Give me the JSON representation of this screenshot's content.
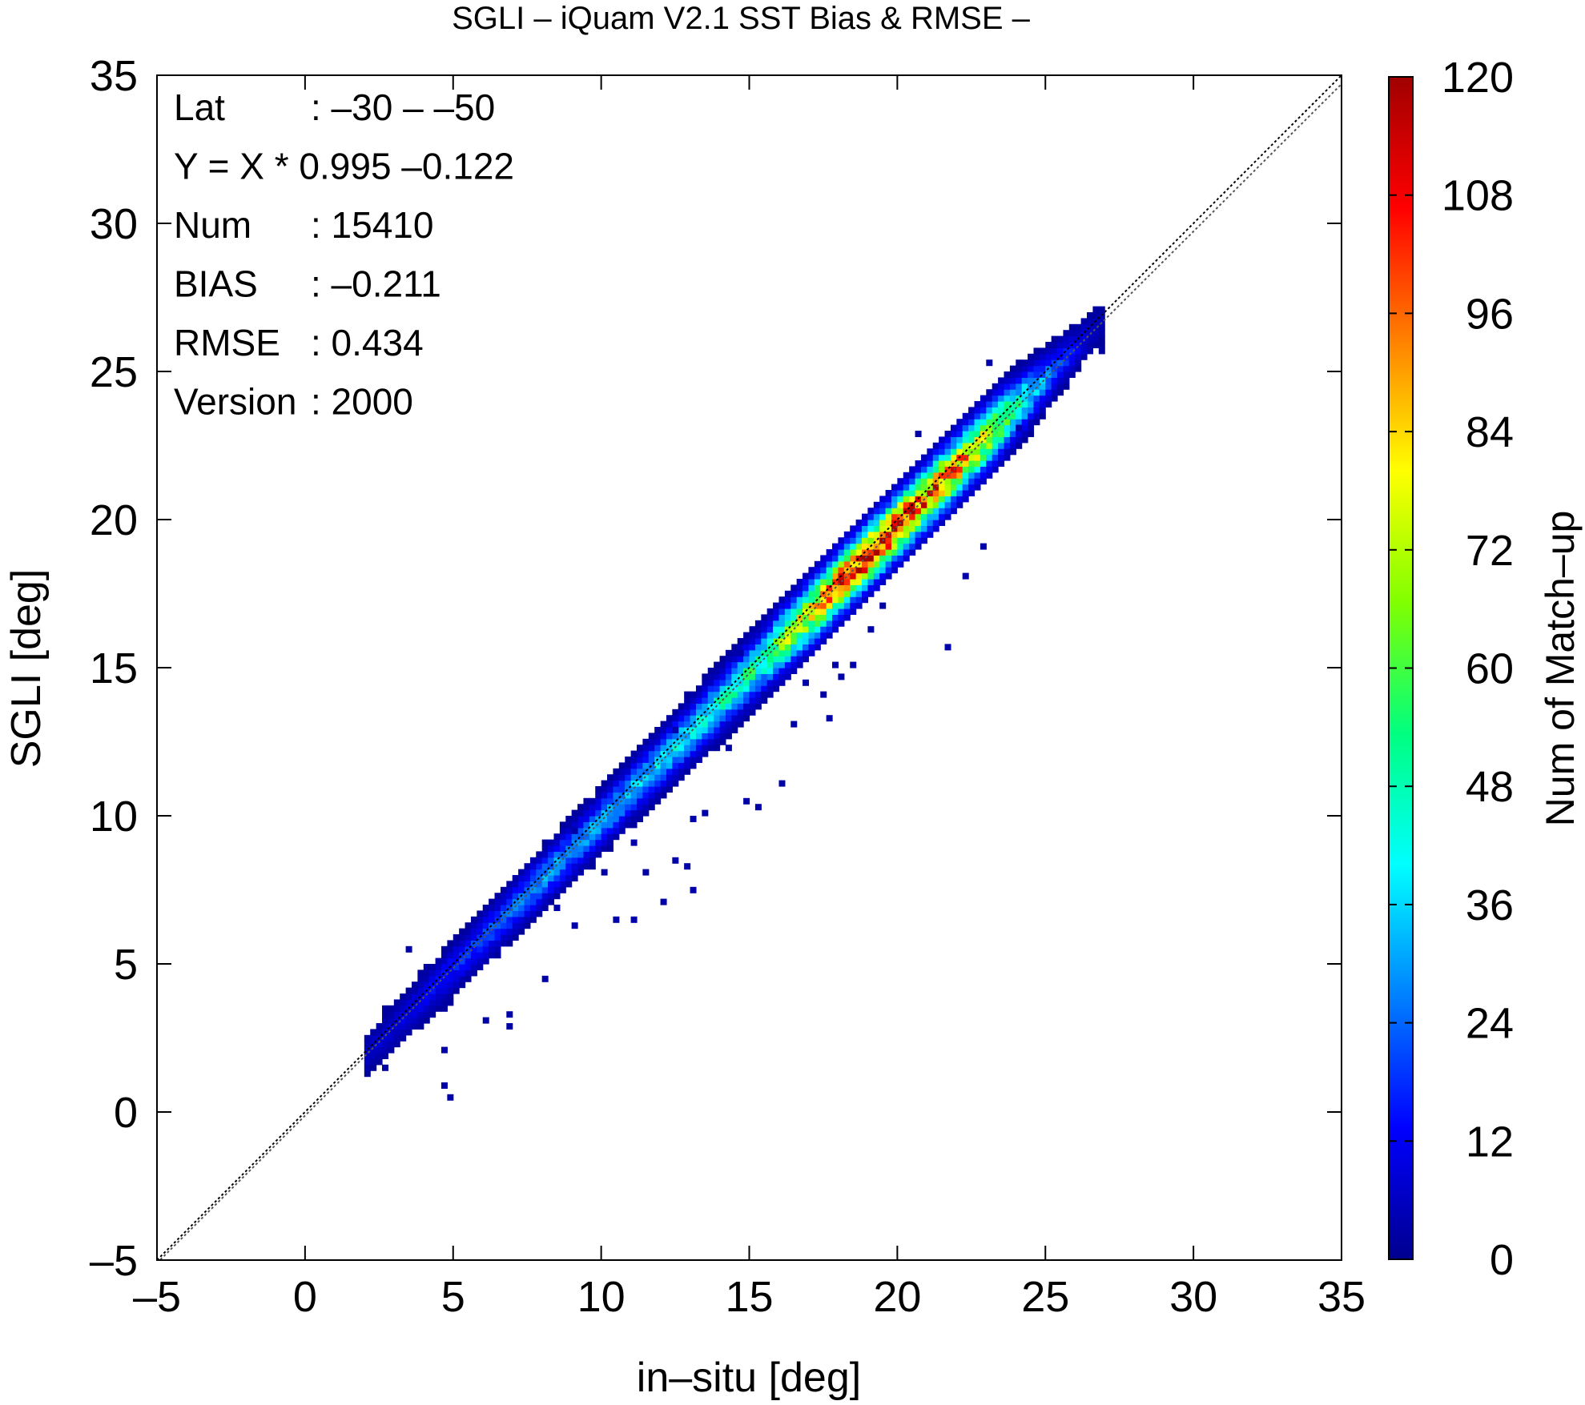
{
  "chart_data": {
    "type": "heatmap",
    "title": "SGLI – iQuam V2.1 SST Bias & RMSE  –",
    "xlabel": "in–situ [deg]",
    "ylabel": "SGLI [deg]",
    "xlim": [
      -5,
      35
    ],
    "ylim": [
      -5,
      35
    ],
    "xticks": [
      -5,
      0,
      5,
      10,
      15,
      20,
      25,
      30,
      35
    ],
    "yticks": [
      -5,
      0,
      5,
      10,
      15,
      20,
      25,
      30,
      35
    ],
    "xtick_labels": [
      "–5",
      "0",
      "5",
      "10",
      "15",
      "20",
      "25",
      "30",
      "35"
    ],
    "ytick_labels": [
      "–5",
      "0",
      "5",
      "10",
      "15",
      "20",
      "25",
      "30",
      "35"
    ],
    "grid": false,
    "stats": [
      {
        "key": "Lat",
        "value": ": –30 – –50"
      },
      {
        "key": "Y = X * 0.995 –0.122",
        "value": ""
      },
      {
        "key": "Num",
        "value": ": 15410"
      },
      {
        "key": "BIAS",
        "value": ": –0.211"
      },
      {
        "key": "RMSE",
        "value": ": 0.434"
      },
      {
        "key": "Version",
        "value": ": 2000"
      }
    ],
    "regression": {
      "slope": 0.995,
      "intercept": -0.122
    },
    "reference_line": {
      "slope": 1,
      "intercept": 0
    },
    "colorbar": {
      "label": "Num of Match–up",
      "min": 0,
      "max": 120,
      "ticks": [
        0,
        12,
        24,
        36,
        48,
        60,
        72,
        84,
        96,
        108,
        120
      ],
      "tick_labels": [
        "0",
        "12",
        "24",
        "36",
        "48",
        "60",
        "72",
        "84",
        "96",
        "108",
        "120"
      ],
      "colors": [
        "#00008f",
        "#0000ff",
        "#0080ff",
        "#00ffff",
        "#00ff80",
        "#80ff00",
        "#ffff00",
        "#ff8000",
        "#ff0000",
        "#a00000"
      ]
    },
    "density_profile": [
      {
        "x": 2,
        "peak": 6
      },
      {
        "x": 3.5,
        "peak": 10
      },
      {
        "x": 5,
        "peak": 16
      },
      {
        "x": 6.5,
        "peak": 22
      },
      {
        "x": 8,
        "peak": 28
      },
      {
        "x": 9.5,
        "peak": 30
      },
      {
        "x": 11,
        "peak": 32
      },
      {
        "x": 12.5,
        "peak": 38
      },
      {
        "x": 14,
        "peak": 44
      },
      {
        "x": 15.5,
        "peak": 52
      },
      {
        "x": 17,
        "peak": 80
      },
      {
        "x": 18,
        "peak": 100
      },
      {
        "x": 19,
        "peak": 112
      },
      {
        "x": 20,
        "peak": 108
      },
      {
        "x": 21,
        "peak": 98
      },
      {
        "x": 22,
        "peak": 92
      },
      {
        "x": 23,
        "peak": 76
      },
      {
        "x": 24,
        "peak": 50
      },
      {
        "x": 25,
        "peak": 28
      },
      {
        "x": 26,
        "peak": 12
      },
      {
        "x": 26.8,
        "peak": 4
      }
    ],
    "outliers": [
      {
        "x": 4.8,
        "y": 0.8
      },
      {
        "x": 4.9,
        "y": 0.4
      },
      {
        "x": 4.8,
        "y": 2.0
      },
      {
        "x": 6.0,
        "y": 3.0
      },
      {
        "x": 6.8,
        "y": 3.2
      },
      {
        "x": 6.8,
        "y": 2.9
      },
      {
        "x": 8.1,
        "y": 4.5
      },
      {
        "x": 3.4,
        "y": 5.5
      },
      {
        "x": 10.6,
        "y": 6.6
      },
      {
        "x": 11.2,
        "y": 6.4
      },
      {
        "x": 12.5,
        "y": 8.4
      },
      {
        "x": 12.8,
        "y": 8.3
      },
      {
        "x": 13.2,
        "y": 7.6
      },
      {
        "x": 12.0,
        "y": 7.0
      },
      {
        "x": 14.3,
        "y": 12.3
      },
      {
        "x": 15.5,
        "y": 14.0
      },
      {
        "x": 18.5,
        "y": 15.0
      },
      {
        "x": 17.5,
        "y": 14.0
      },
      {
        "x": 16.5,
        "y": 13.2
      },
      {
        "x": 21.7,
        "y": 15.7
      },
      {
        "x": 22.8,
        "y": 19.0
      },
      {
        "x": 22.3,
        "y": 18.2
      },
      {
        "x": 23.2,
        "y": 25.3
      },
      {
        "x": 20.6,
        "y": 22.8
      },
      {
        "x": 14.8,
        "y": 10.6
      },
      {
        "x": 16.0,
        "y": 11.0
      },
      {
        "x": 15.3,
        "y": 10.3
      },
      {
        "x": 9.2,
        "y": 6.2
      },
      {
        "x": 8.5,
        "y": 6.8
      },
      {
        "x": 13.0,
        "y": 9.8
      },
      {
        "x": 14.6,
        "y": 15.5
      },
      {
        "x": 19.0,
        "y": 16.3
      },
      {
        "x": 9.1,
        "y": 9.6
      },
      {
        "x": 11.5,
        "y": 8.0
      },
      {
        "x": 17.6,
        "y": 13.3
      },
      {
        "x": 18.2,
        "y": 14.6
      },
      {
        "x": 13.5,
        "y": 10.0
      },
      {
        "x": 10.2,
        "y": 8.0
      },
      {
        "x": 11.1,
        "y": 9.2
      },
      {
        "x": 19.5,
        "y": 17.0
      },
      {
        "x": 24.0,
        "y": 23.0
      },
      {
        "x": 23.8,
        "y": 22.3
      },
      {
        "x": 12.6,
        "y": 12.9
      },
      {
        "x": 17.8,
        "y": 15.2
      },
      {
        "x": 16.8,
        "y": 14.4
      }
    ]
  }
}
